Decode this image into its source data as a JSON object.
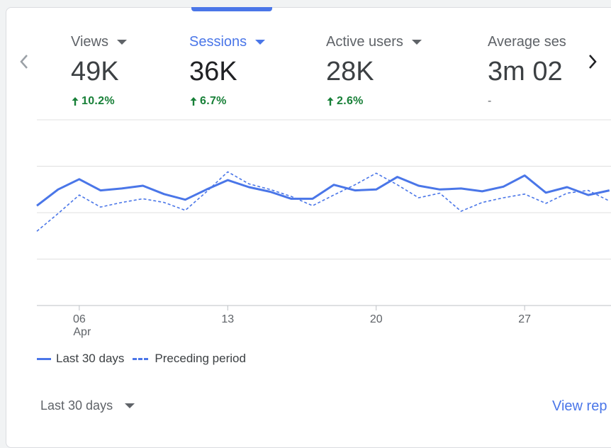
{
  "metrics": [
    {
      "label": "Views",
      "value": "49K",
      "delta": "10.2%",
      "trend": "up",
      "active": false
    },
    {
      "label": "Sessions",
      "value": "36K",
      "delta": "6.7%",
      "trend": "up",
      "active": true
    },
    {
      "label": "Active users",
      "value": "28K",
      "delta": "2.6%",
      "trend": "up",
      "active": false
    },
    {
      "label": "Average ses",
      "value": "3m 02",
      "delta": "-",
      "trend": "none",
      "active": false
    }
  ],
  "footer": {
    "range_label": "Last 30 days",
    "view_report_label": "View rep"
  },
  "colors": {
    "accent": "#4a76e8",
    "positive": "#188038",
    "text": "#3c4043"
  },
  "chart_data": {
    "type": "line",
    "x_ticks": [
      {
        "label": "06",
        "sub": "Apr",
        "index": 2
      },
      {
        "label": "13",
        "sub": "",
        "index": 9
      },
      {
        "label": "20",
        "sub": "",
        "index": 16
      },
      {
        "label": "27",
        "sub": "",
        "index": 23
      }
    ],
    "ylim": [
      0,
      4
    ],
    "gridlines": [
      0,
      1,
      2,
      3,
      4
    ],
    "series": [
      {
        "name": "Last 30 days",
        "style": "solid",
        "values": [
          2.15,
          2.5,
          2.72,
          2.48,
          2.52,
          2.58,
          2.4,
          2.28,
          2.5,
          2.7,
          2.55,
          2.45,
          2.3,
          2.3,
          2.6,
          2.48,
          2.5,
          2.77,
          2.58,
          2.5,
          2.52,
          2.46,
          2.56,
          2.8,
          2.43,
          2.55,
          2.38,
          2.48
        ]
      },
      {
        "name": "Preceding period",
        "style": "dashed",
        "values": [
          1.6,
          1.98,
          2.38,
          2.12,
          2.22,
          2.3,
          2.22,
          2.05,
          2.45,
          2.88,
          2.62,
          2.5,
          2.35,
          2.15,
          2.38,
          2.6,
          2.85,
          2.6,
          2.32,
          2.42,
          2.03,
          2.22,
          2.32,
          2.4,
          2.2,
          2.42,
          2.48,
          2.25
        ]
      }
    ]
  }
}
